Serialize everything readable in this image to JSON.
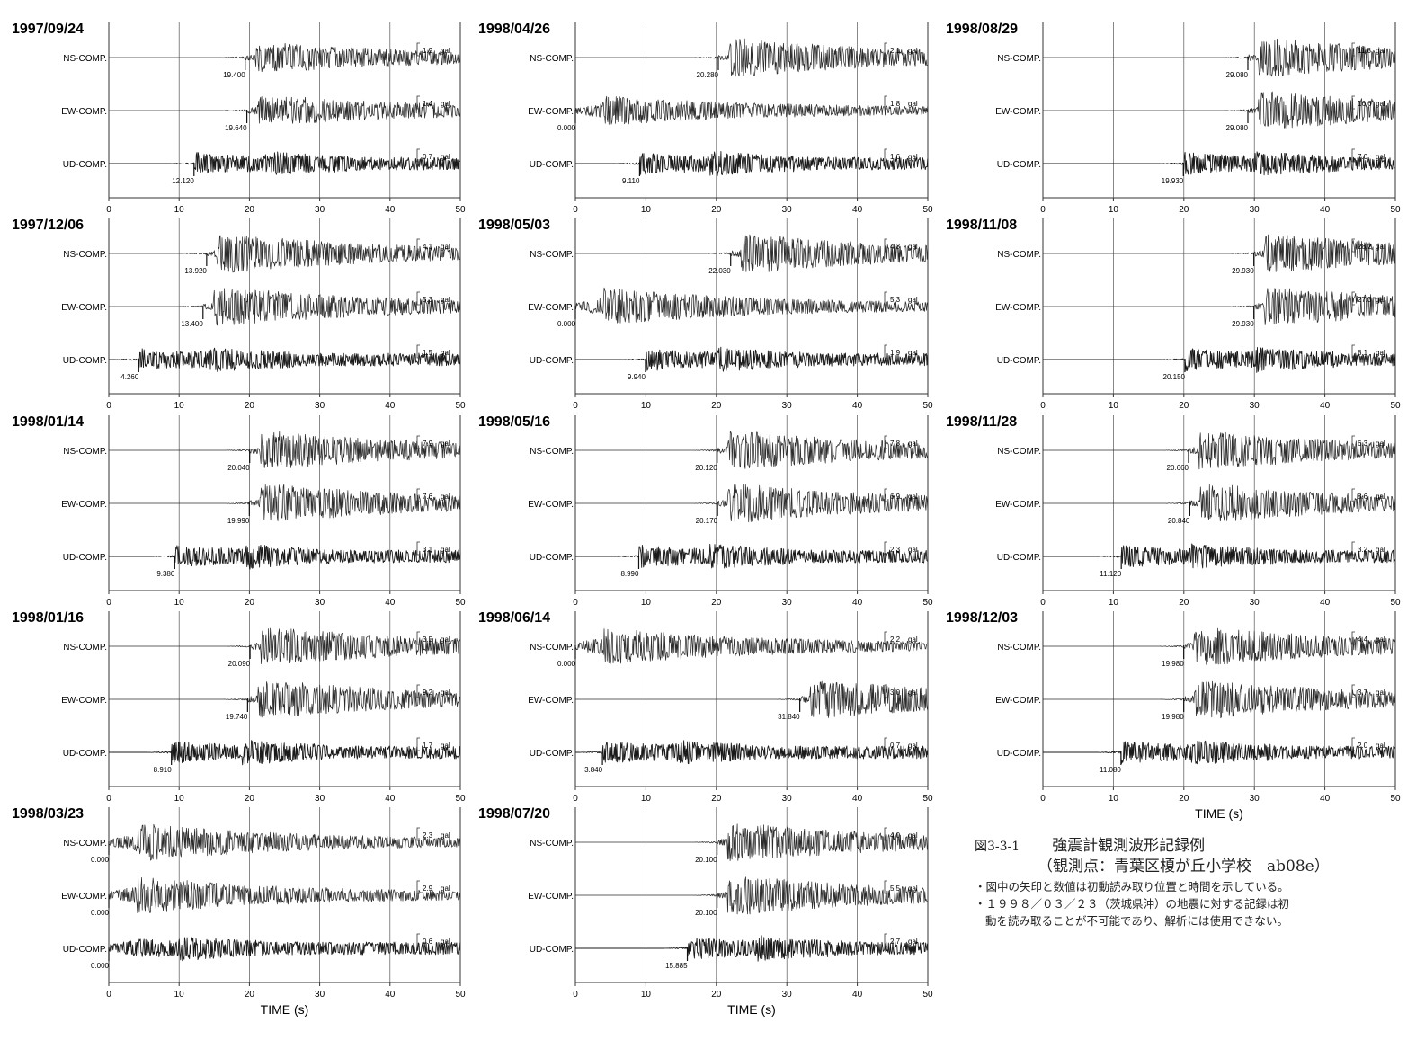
{
  "xticks": [
    0,
    10,
    20,
    30,
    40,
    50
  ],
  "units": "gal",
  "chart_data": [
    {
      "type": "line",
      "date": "1997/09/24",
      "x_range": [
        0,
        50
      ],
      "traces": [
        {
          "name": "NS-COMP.",
          "pick": 19.4,
          "pick_label": "19.400",
          "scale": "1.9",
          "amp": 1.9
        },
        {
          "name": "EW-COMP.",
          "pick": 19.64,
          "pick_label": "19.640",
          "scale": "1.4",
          "amp": 1.4
        },
        {
          "name": "UD-COMP.",
          "pick": 12.12,
          "pick_label": "12.120",
          "scale": "0.7",
          "amp": 0.7
        }
      ]
    },
    {
      "type": "line",
      "date": "1998/04/26",
      "x_range": [
        0,
        50
      ],
      "traces": [
        {
          "name": "NS-COMP.",
          "pick": 20.28,
          "pick_label": "20.280",
          "scale": "2.1",
          "amp": 2.1
        },
        {
          "name": "EW-COMP.",
          "pick": 0.0,
          "pick_label": "0.000",
          "scale": "1.8",
          "amp": 1.8
        },
        {
          "name": "UD-COMP.",
          "pick": 9.11,
          "pick_label": "9.110",
          "scale": "1.6",
          "amp": 1.6
        }
      ]
    },
    {
      "type": "line",
      "date": "1998/08/29",
      "x_range": [
        0,
        50
      ],
      "traces": [
        {
          "name": "NS-COMP.",
          "pick": 29.08,
          "pick_label": "29.080",
          "scale": "11.8",
          "amp": 11.8
        },
        {
          "name": "EW-COMP.",
          "pick": 29.08,
          "pick_label": "29.080",
          "scale": "16.6",
          "amp": 16.6
        },
        {
          "name": "UD-COMP.",
          "pick": 19.93,
          "pick_label": "19.930",
          "scale": "7.0",
          "amp": 7.0
        }
      ]
    },
    {
      "type": "line",
      "date": "1997/12/06",
      "x_range": [
        0,
        50
      ],
      "traces": [
        {
          "name": "NS-COMP.",
          "pick": 13.92,
          "pick_label": "13.920",
          "scale": "4.1",
          "amp": 4.1
        },
        {
          "name": "EW-COMP.",
          "pick": 13.4,
          "pick_label": "13.400",
          "scale": "5.3",
          "amp": 5.3
        },
        {
          "name": "UD-COMP.",
          "pick": 4.26,
          "pick_label": "4.260",
          "scale": "1.5",
          "amp": 1.5
        }
      ]
    },
    {
      "type": "line",
      "date": "1998/05/03",
      "x_range": [
        0,
        50
      ],
      "traces": [
        {
          "name": "NS-COMP.",
          "pick": 22.03,
          "pick_label": "22.030",
          "scale": "4.3",
          "amp": 4.3
        },
        {
          "name": "EW-COMP.",
          "pick": 0.0,
          "pick_label": "0.000",
          "scale": "5.3",
          "amp": 5.3
        },
        {
          "name": "UD-COMP.",
          "pick": 9.94,
          "pick_label": "9.940",
          "scale": "1.9",
          "amp": 1.9
        }
      ]
    },
    {
      "type": "line",
      "date": "1998/11/08",
      "x_range": [
        0,
        50
      ],
      "traces": [
        {
          "name": "NS-COMP.",
          "pick": 29.93,
          "pick_label": "29.930",
          "scale": "28.2",
          "amp": 28.2
        },
        {
          "name": "EW-COMP.",
          "pick": 29.93,
          "pick_label": "29.930",
          "scale": "27.3",
          "amp": 27.3
        },
        {
          "name": "UD-COMP.",
          "pick": 20.15,
          "pick_label": "20.150",
          "scale": "8.1",
          "amp": 8.1
        }
      ]
    },
    {
      "type": "line",
      "date": "1998/01/14",
      "x_range": [
        0,
        50
      ],
      "traces": [
        {
          "name": "NS-COMP.",
          "pick": 20.04,
          "pick_label": "20.040",
          "scale": "7.9",
          "amp": 7.9
        },
        {
          "name": "EW-COMP.",
          "pick": 19.99,
          "pick_label": "19.990",
          "scale": "7.6",
          "amp": 7.6
        },
        {
          "name": "UD-COMP.",
          "pick": 9.38,
          "pick_label": "9.380",
          "scale": "3.1",
          "amp": 3.1
        }
      ]
    },
    {
      "type": "line",
      "date": "1998/05/16",
      "x_range": [
        0,
        50
      ],
      "traces": [
        {
          "name": "NS-COMP.",
          "pick": 20.12,
          "pick_label": "20.120",
          "scale": "7.8",
          "amp": 7.8
        },
        {
          "name": "EW-COMP.",
          "pick": 20.17,
          "pick_label": "20.170",
          "scale": "6.9",
          "amp": 6.9
        },
        {
          "name": "UD-COMP.",
          "pick": 8.99,
          "pick_label": "8.990",
          "scale": "2.3",
          "amp": 2.3
        }
      ]
    },
    {
      "type": "line",
      "date": "1998/11/28",
      "x_range": [
        0,
        50
      ],
      "traces": [
        {
          "name": "NS-COMP.",
          "pick": 20.66,
          "pick_label": "20.660",
          "scale": "6.3",
          "amp": 6.3
        },
        {
          "name": "EW-COMP.",
          "pick": 20.84,
          "pick_label": "20.840",
          "scale": "8.6",
          "amp": 8.6
        },
        {
          "name": "UD-COMP.",
          "pick": 11.12,
          "pick_label": "11.120",
          "scale": "3.2",
          "amp": 3.2
        }
      ]
    },
    {
      "type": "line",
      "date": "1998/01/16",
      "x_range": [
        0,
        50
      ],
      "traces": [
        {
          "name": "NS-COMP.",
          "pick": 20.09,
          "pick_label": "20.090",
          "scale": "3.5",
          "amp": 3.5
        },
        {
          "name": "EW-COMP.",
          "pick": 19.74,
          "pick_label": "19.740",
          "scale": "9.2",
          "amp": 9.2
        },
        {
          "name": "UD-COMP.",
          "pick": 8.91,
          "pick_label": "8.910",
          "scale": "1.7",
          "amp": 1.7
        }
      ]
    },
    {
      "type": "line",
      "date": "1998/06/14",
      "x_range": [
        0,
        50
      ],
      "traces": [
        {
          "name": "NS-COMP.",
          "pick": 0.0,
          "pick_label": "0.000",
          "scale": "2.2",
          "amp": 2.2
        },
        {
          "name": "EW-COMP.",
          "pick": 31.84,
          "pick_label": "31.840",
          "scale": "3.0",
          "amp": 3.0
        },
        {
          "name": "UD-COMP.",
          "pick": 3.84,
          "pick_label": "3.840",
          "scale": "0.7",
          "amp": 0.7
        }
      ]
    },
    {
      "type": "line",
      "date": "1998/12/03",
      "x_range": [
        0,
        50
      ],
      "xlabel": "TIME (s)",
      "traces": [
        {
          "name": "NS-COMP.",
          "pick": 19.98,
          "pick_label": "19.980",
          "scale": "4.4",
          "amp": 4.4
        },
        {
          "name": "EW-COMP.",
          "pick": 19.98,
          "pick_label": "19.980",
          "scale": "3.7",
          "amp": 3.7
        },
        {
          "name": "UD-COMP.",
          "pick": 11.08,
          "pick_label": "11.080",
          "scale": "2.0",
          "amp": 2.0
        }
      ]
    },
    {
      "type": "line",
      "date": "1998/03/23",
      "x_range": [
        0,
        50
      ],
      "xlabel": "TIME (s)",
      "traces": [
        {
          "name": "NS-COMP.",
          "pick": 0.0,
          "pick_label": "0.000",
          "scale": "2.3",
          "amp": 2.3
        },
        {
          "name": "EW-COMP.",
          "pick": 0.0,
          "pick_label": "0.000",
          "scale": "2.9",
          "amp": 2.9
        },
        {
          "name": "UD-COMP.",
          "pick": 0.0,
          "pick_label": "0.000",
          "scale": "0.6",
          "amp": 0.6
        }
      ]
    },
    {
      "type": "line",
      "date": "1998/07/20",
      "x_range": [
        0,
        50
      ],
      "xlabel": "TIME (s)",
      "traces": [
        {
          "name": "NS-COMP.",
          "pick": 20.1,
          "pick_label": "20.100",
          "scale": "4.0",
          "amp": 4.0
        },
        {
          "name": "EW-COMP.",
          "pick": 20.1,
          "pick_label": "20.100",
          "scale": "5.5",
          "amp": 5.5
        },
        {
          "name": "UD-COMP.",
          "pick": 15.885,
          "pick_label": "15.885",
          "scale": "2.7",
          "amp": 2.7
        }
      ]
    }
  ],
  "caption": {
    "fig_num": "図3-3-1",
    "title": "強震計観測波形記録例",
    "subtitle": "（観測点：青葉区榎が丘小学校　ab08e）",
    "note1": "・図中の矢印と数値は初動読み取り位置と時間を示している。",
    "note2": "・１９９８／０３／２３（茨城県沖）の地震に対する記録は初",
    "note3": "動を読み取ることが不可能であり、解析には使用できない。"
  }
}
